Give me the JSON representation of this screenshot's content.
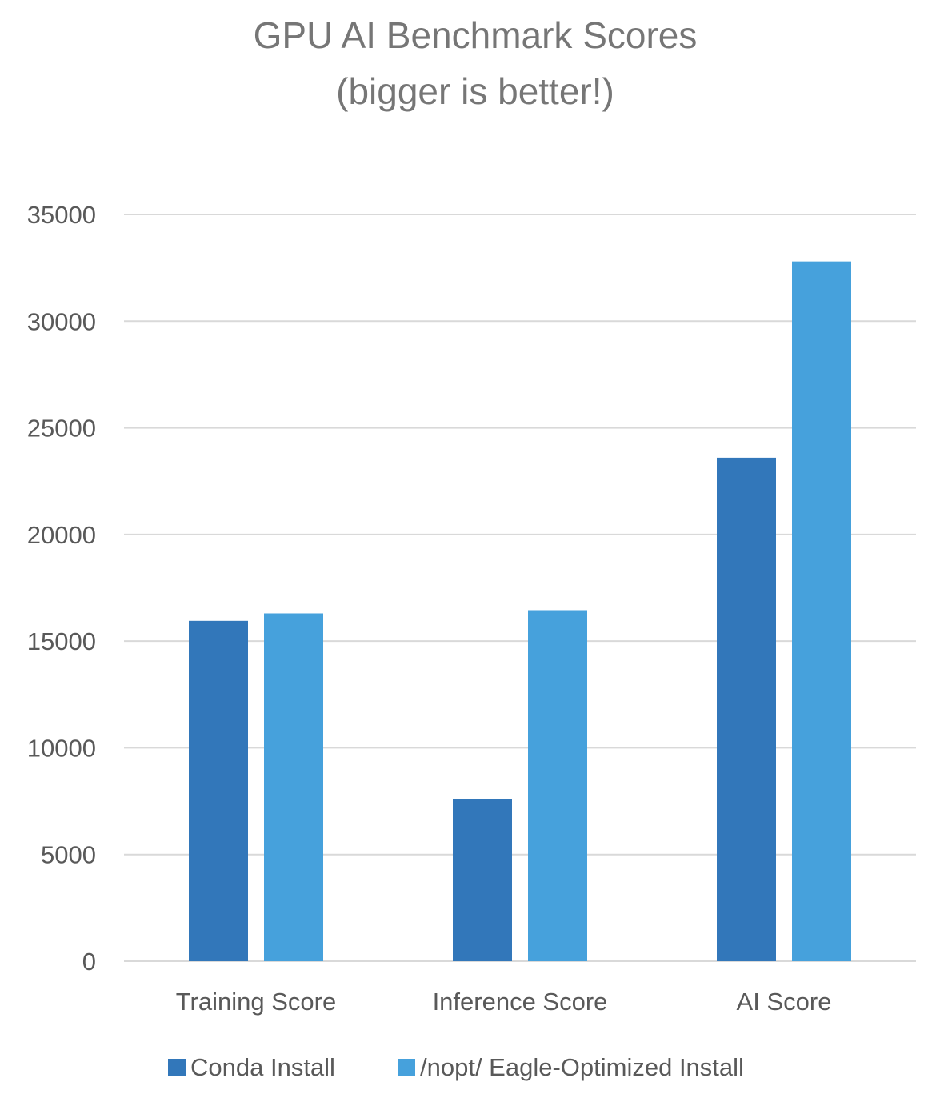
{
  "chart_data": {
    "type": "bar",
    "title": "GPU AI Benchmark Scores",
    "subtitle": "(bigger is better!)",
    "xlabel": "",
    "ylabel": "",
    "categories": [
      "Training Score",
      "Inference Score",
      "AI Score"
    ],
    "series": [
      {
        "name": "Conda Install",
        "values": [
          15950,
          7600,
          23600
        ],
        "color": "#3277BA"
      },
      {
        "name": "/nopt/ Eagle-Optimized Install",
        "values": [
          16300,
          16450,
          32800
        ],
        "color": "#46A1DC"
      }
    ],
    "ylim": [
      0,
      35000
    ],
    "yticks": [
      0,
      5000,
      10000,
      15000,
      20000,
      25000,
      30000,
      35000
    ],
    "grid": true,
    "legend": "bottom"
  },
  "colors": {
    "title": "#767676",
    "axis_text": "#595959",
    "grid": "#D9D9D9"
  }
}
